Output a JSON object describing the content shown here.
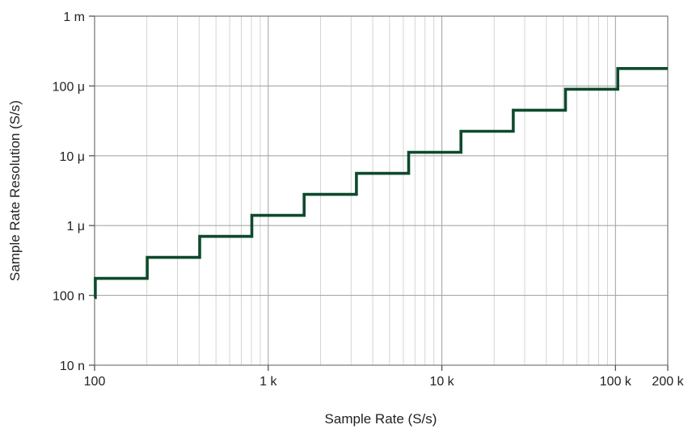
{
  "chart_data": {
    "type": "line",
    "title": "",
    "xlabel": "Sample Rate (S/s)",
    "ylabel": "Sample Rate Resolution (S/s)",
    "x_scale": "log",
    "y_scale": "log",
    "xlim": [
      100,
      200000
    ],
    "ylim": [
      1e-08,
      0.001
    ],
    "grid": true,
    "x_ticks": [
      {
        "value": 100,
        "label": "100"
      },
      {
        "value": 1000,
        "label": "1 k"
      },
      {
        "value": 10000,
        "label": "10 k"
      },
      {
        "value": 100000,
        "label": "100 k"
      },
      {
        "value": 200000,
        "label": "200 k"
      }
    ],
    "y_ticks": [
      {
        "value": 1e-08,
        "label": "10 n"
      },
      {
        "value": 1e-07,
        "label": "100 n"
      },
      {
        "value": 1e-06,
        "label": "1 μ"
      },
      {
        "value": 1e-05,
        "label": "10 μ"
      },
      {
        "value": 0.0001,
        "label": "100 μ"
      },
      {
        "value": 0.001,
        "label": "1 m"
      }
    ],
    "series": [
      {
        "color": "#0d4a2c",
        "step": true,
        "x": [
          100,
          101,
          101,
          201,
          201,
          403,
          403,
          805,
          805,
          1610,
          1610,
          3220,
          3220,
          6440,
          6440,
          12880,
          12880,
          25770,
          25770,
          51540,
          51540,
          103080,
          103080,
          200000
        ],
        "y": [
          9.3e-08,
          9.3e-08,
          1.75e-07,
          1.75e-07,
          3.5e-07,
          3.5e-07,
          7e-07,
          7e-07,
          1.4e-06,
          1.4e-06,
          2.8e-06,
          2.8e-06,
          5.6e-06,
          5.6e-06,
          1.12e-05,
          1.12e-05,
          2.24e-05,
          2.24e-05,
          4.5e-05,
          4.5e-05,
          9e-05,
          9e-05,
          0.000178,
          0.000178
        ]
      }
    ]
  }
}
